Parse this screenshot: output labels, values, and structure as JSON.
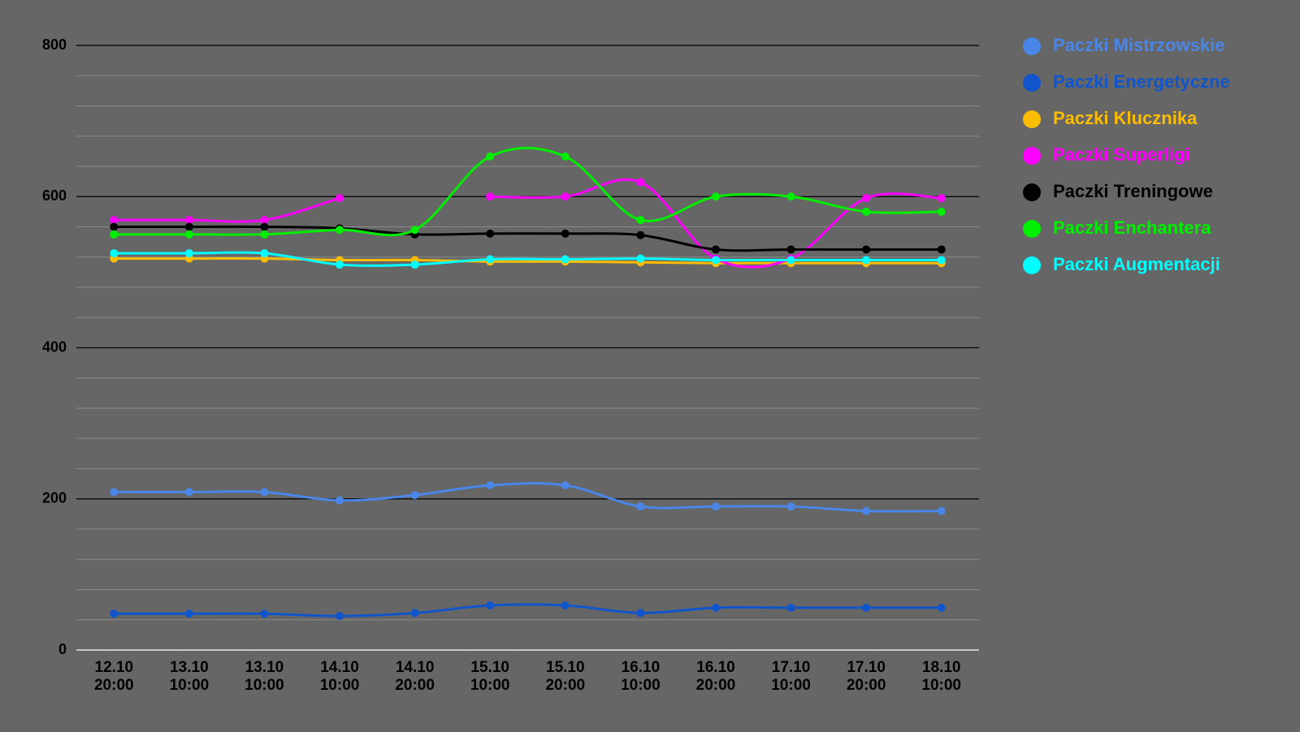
{
  "chart_data": {
    "type": "line",
    "categories": [
      [
        "12.10",
        "20:00"
      ],
      [
        "13.10",
        "10:00"
      ],
      [
        "13.10",
        "10:00"
      ],
      [
        "14.10",
        "10:00"
      ],
      [
        "14.10",
        "20:00"
      ],
      [
        "15.10",
        "10:00"
      ],
      [
        "15.10",
        "20:00"
      ],
      [
        "16.10",
        "10:00"
      ],
      [
        "16.10",
        "20:00"
      ],
      [
        "17.10",
        "10:00"
      ],
      [
        "17.10",
        "20:00"
      ],
      [
        "18.10",
        "10:00"
      ]
    ],
    "series": [
      {
        "name": "Paczki Mistrzowskie",
        "color": "#4a86e8",
        "values": [
          209,
          209,
          209,
          198,
          205,
          218,
          218,
          190,
          190,
          190,
          184,
          184
        ]
      },
      {
        "name": "Paczki Energetyczne",
        "color": "#1155cc",
        "values": [
          48,
          48,
          48,
          45,
          49,
          59,
          59,
          49,
          56,
          56,
          56,
          56
        ]
      },
      {
        "name": "Paczki Klucznika",
        "color": "#fbbc04",
        "values": [
          518,
          518,
          518,
          516,
          516,
          514,
          514,
          513,
          512,
          512,
          512,
          512
        ]
      },
      {
        "name": "Paczki Superligi",
        "color": "#ff00ff",
        "values": [
          569,
          569,
          569,
          598,
          null,
          600,
          600,
          619,
          518,
          518,
          598,
          598
        ]
      },
      {
        "name": "Paczki Treningowe",
        "color": "#000000",
        "values": [
          560,
          560,
          560,
          558,
          550,
          551,
          551,
          549,
          530,
          530,
          530,
          530
        ]
      },
      {
        "name": "Paczki Enchantera",
        "color": "#00ee00",
        "values": [
          550,
          550,
          550,
          556,
          556,
          653,
          653,
          569,
          600,
          600,
          580,
          580
        ]
      },
      {
        "name": "Paczki Augmentacji",
        "color": "#00ffff",
        "values": [
          525,
          525,
          525,
          510,
          510,
          517,
          517,
          518,
          516,
          516,
          516,
          516
        ]
      }
    ],
    "ylim": [
      0,
      800
    ],
    "yticks": [
      0,
      200,
      400,
      600,
      800
    ],
    "minor_yticks": [
      40,
      80,
      120,
      160,
      240,
      280,
      320,
      360,
      440,
      480,
      520,
      560,
      640,
      680,
      720,
      760
    ],
    "grid": true,
    "legend": "right"
  }
}
